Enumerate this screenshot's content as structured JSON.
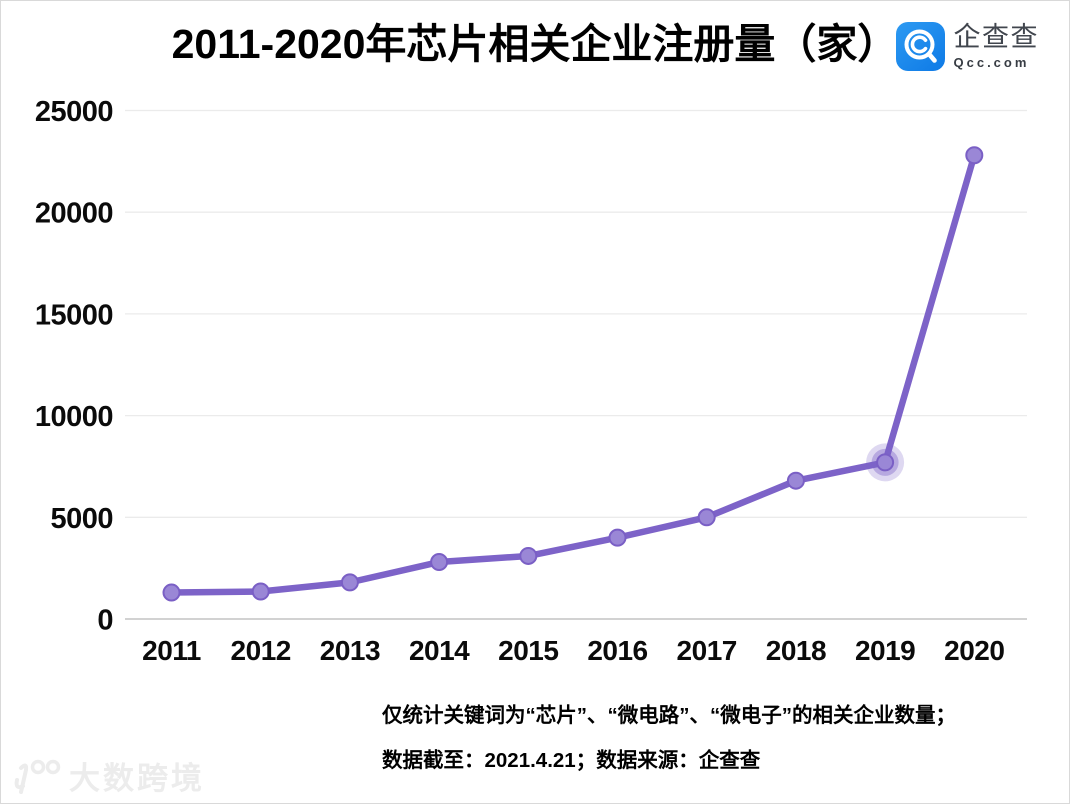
{
  "header": {
    "title": "2011-2020年芯片相关企业注册量（家）",
    "logo": {
      "brand": "企查查",
      "domain": "Qcc.com",
      "icon": "qcc-magnifier-icon",
      "brand_color": "#1586EC"
    }
  },
  "chart_data": {
    "type": "line",
    "title": "2011-2020年芯片相关企业注册量（家）",
    "categories": [
      "2011",
      "2012",
      "2013",
      "2014",
      "2015",
      "2016",
      "2017",
      "2018",
      "2019",
      "2020"
    ],
    "values": [
      1300,
      1350,
      1800,
      2800,
      3100,
      4000,
      5000,
      6800,
      7700,
      22800
    ],
    "highlighted_point": "2019",
    "xlabel": "",
    "ylabel": "",
    "ylim": [
      0,
      25000
    ],
    "y_ticks": [
      0,
      5000,
      10000,
      15000,
      20000,
      25000
    ],
    "grid": "horizontal",
    "legend": "none",
    "colors": {
      "line": "#7D63C8",
      "marker_fill": "#9A87D6",
      "marker_stroke": "#7A5FC5",
      "halo": "125,99,200",
      "gridline": "#ebebeb",
      "zero_line": "#d2d2d2"
    }
  },
  "footnotes": {
    "line1": "仅统计关键词为“芯片”、“微电路”、“微电子”的相关企业数量；",
    "line2": "数据截至：2021.4.21；数据来源：企查查"
  },
  "watermark": {
    "text": "大数跨境"
  }
}
